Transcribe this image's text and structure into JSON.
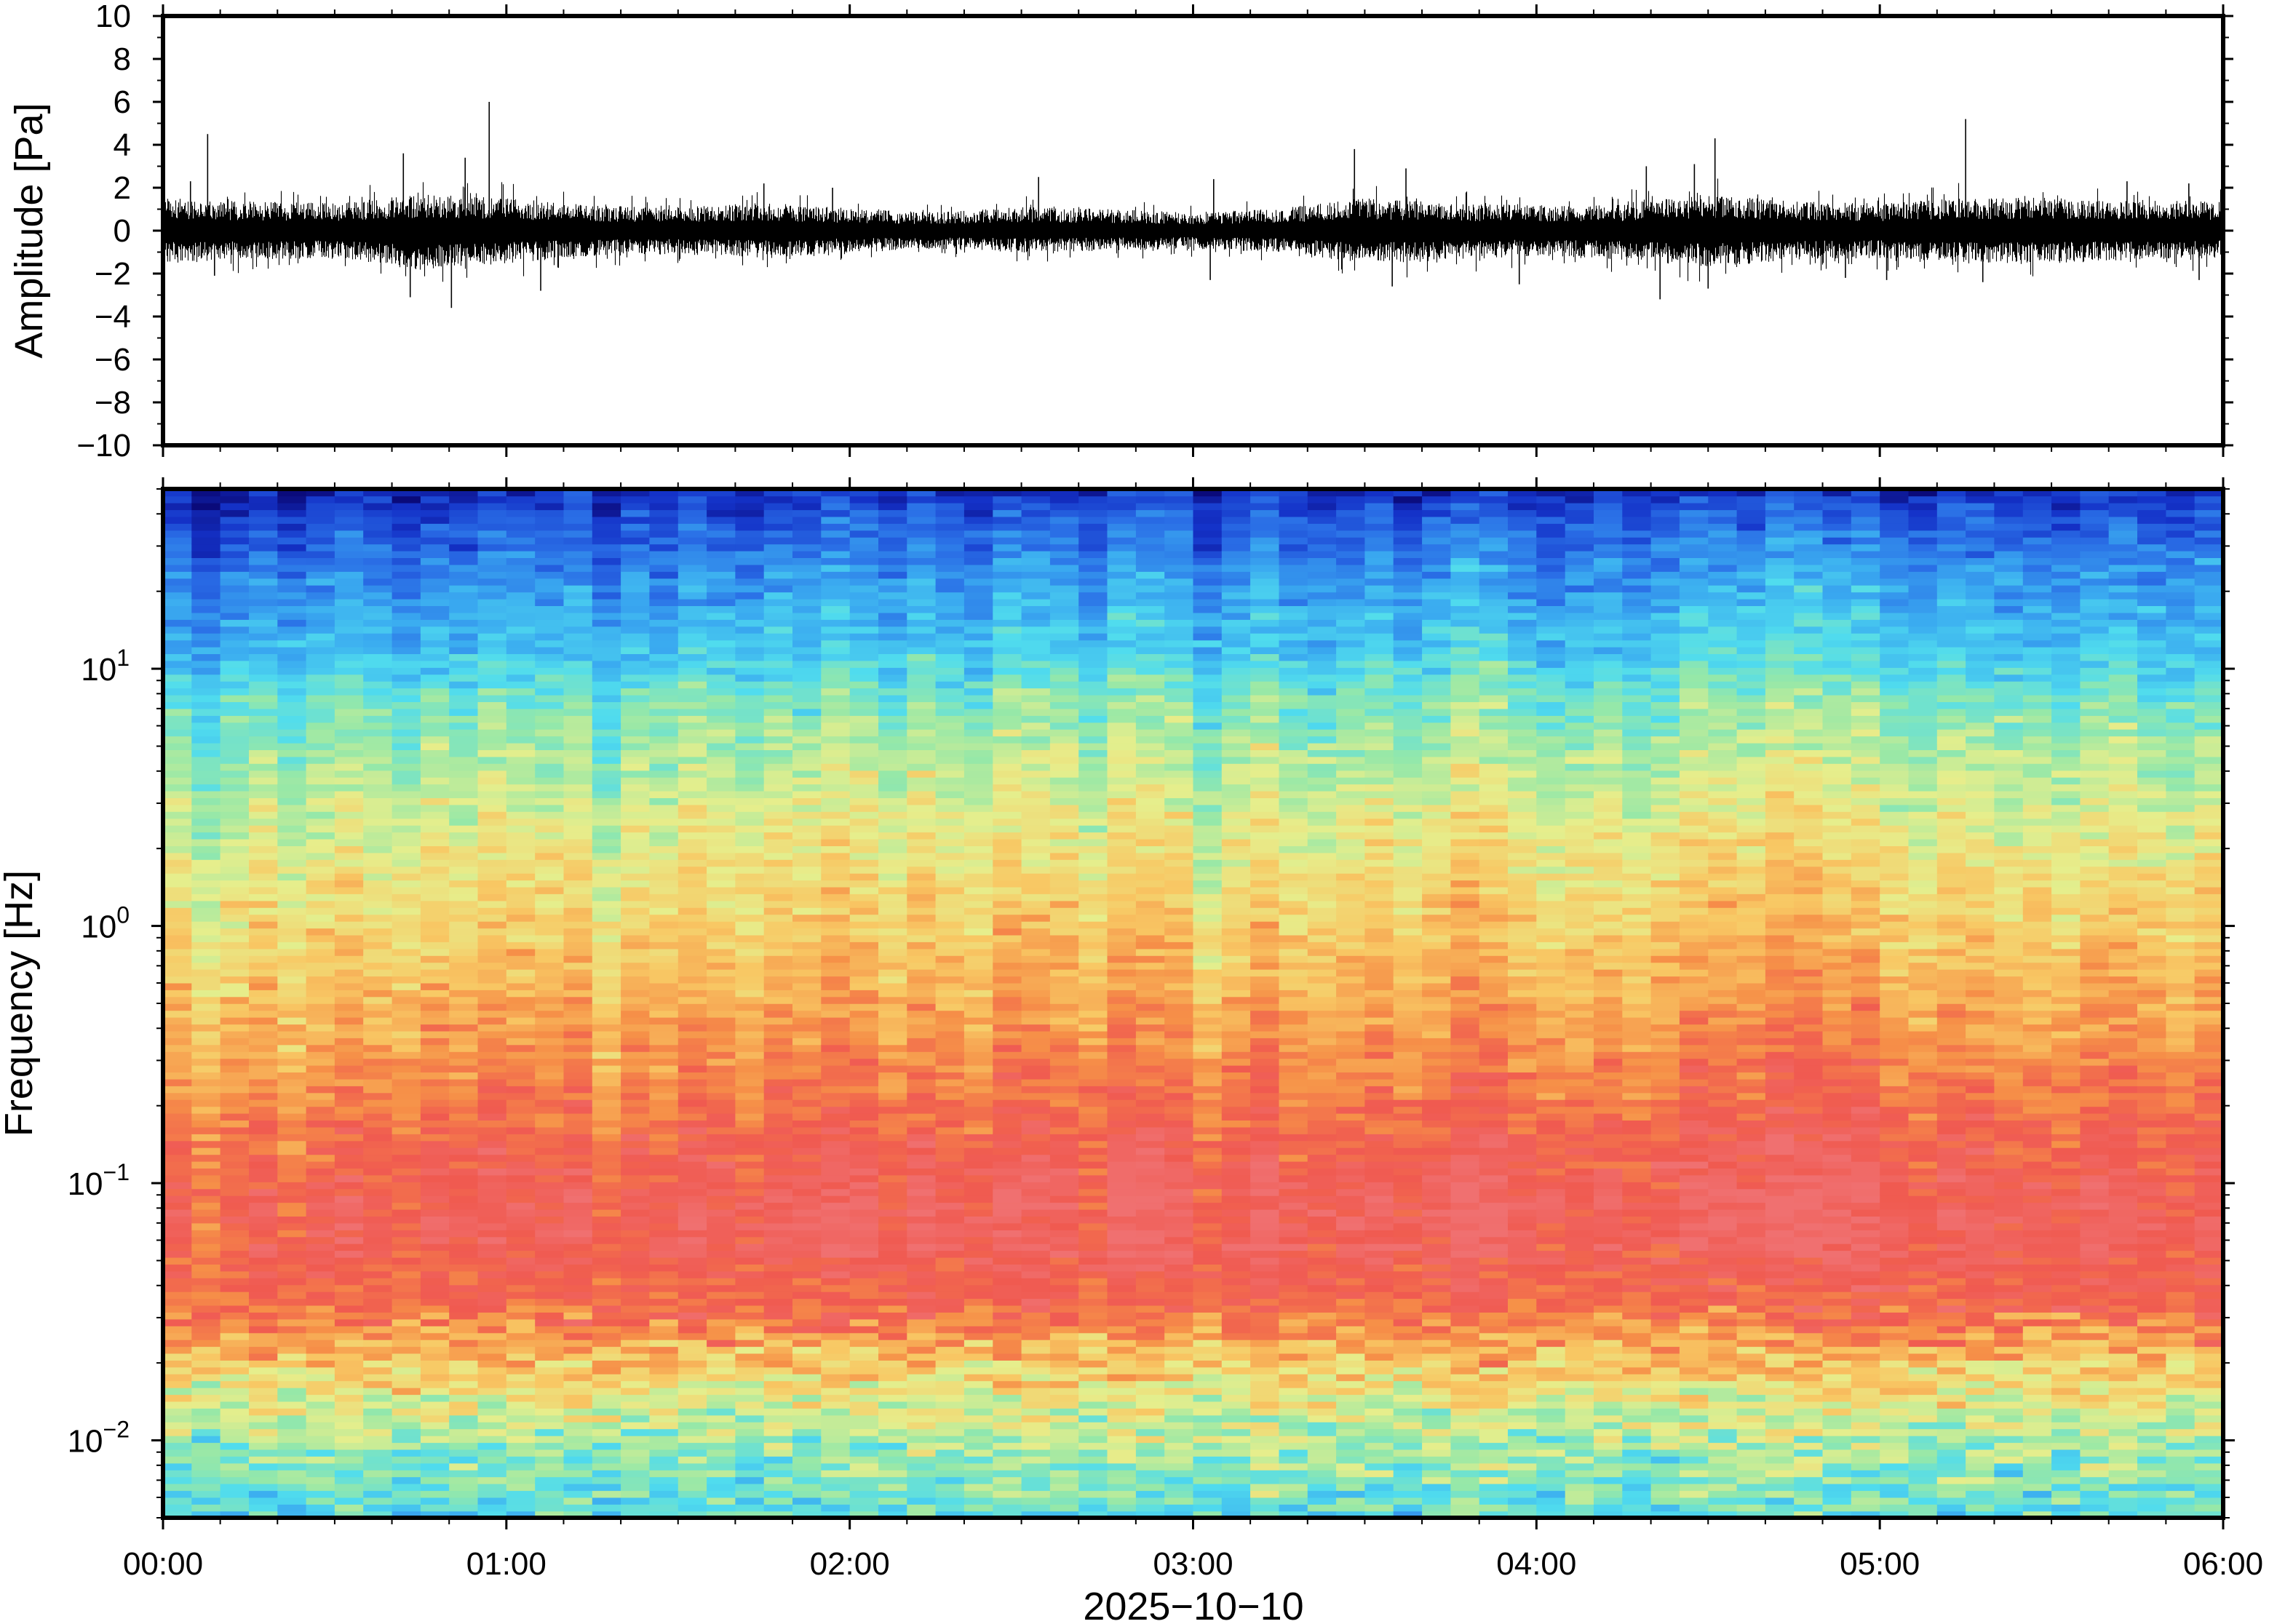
{
  "chart_data": [
    {
      "type": "line",
      "panel": "waveform",
      "title": "",
      "xlabel": "",
      "ylabel": "Amplitude [Pa]",
      "x_range_hours": [
        0,
        6
      ],
      "ylim": [
        -10,
        10
      ],
      "yticks": [
        10,
        8,
        6,
        4,
        2,
        0,
        -2,
        -4,
        -6,
        -8,
        -10
      ],
      "ytick_labels": [
        "10",
        "8",
        "6",
        "4",
        "2",
        "0",
        "−2",
        "−4",
        "−6",
        "−8",
        "−10"
      ],
      "envelope": {
        "t_hours": [
          0.0,
          0.25,
          0.5,
          0.75,
          1.0,
          1.25,
          1.5,
          1.75,
          2.0,
          2.25,
          2.5,
          2.75,
          3.0,
          3.25,
          3.5,
          3.75,
          4.0,
          4.25,
          4.5,
          4.75,
          5.0,
          5.25,
          5.5,
          5.75,
          6.0
        ],
        "typical_max": [
          1.8,
          1.6,
          1.5,
          2.0,
          1.8,
          1.4,
          1.3,
          1.5,
          1.2,
          1.0,
          1.3,
          1.2,
          1.0,
          1.2,
          1.8,
          1.5,
          1.4,
          1.5,
          2.0,
          1.6,
          1.5,
          1.8,
          1.8,
          1.7,
          1.6
        ],
        "typical_min": [
          -1.8,
          -1.6,
          -1.5,
          -2.2,
          -1.8,
          -1.4,
          -1.3,
          -1.5,
          -1.2,
          -1.0,
          -1.2,
          -1.1,
          -1.0,
          -1.2,
          -1.9,
          -1.6,
          -1.4,
          -1.6,
          -2.0,
          -1.6,
          -1.5,
          -1.8,
          -1.8,
          -1.6,
          -1.5
        ]
      },
      "spikes": [
        {
          "t": 0.13,
          "v": 4.5
        },
        {
          "t": 0.08,
          "v": 2.3
        },
        {
          "t": 0.15,
          "v": -2.1
        },
        {
          "t": 0.7,
          "v": 3.6
        },
        {
          "t": 0.72,
          "v": -3.1
        },
        {
          "t": 0.84,
          "v": -3.6
        },
        {
          "t": 0.88,
          "v": 3.4
        },
        {
          "t": 0.95,
          "v": 6.0
        },
        {
          "t": 1.1,
          "v": -2.8
        },
        {
          "t": 1.75,
          "v": 2.2
        },
        {
          "t": 1.95,
          "v": 2.0
        },
        {
          "t": 2.55,
          "v": 2.5
        },
        {
          "t": 3.06,
          "v": 2.4
        },
        {
          "t": 3.05,
          "v": -2.3
        },
        {
          "t": 3.47,
          "v": 3.8
        },
        {
          "t": 3.58,
          "v": -2.6
        },
        {
          "t": 3.62,
          "v": 2.9
        },
        {
          "t": 3.95,
          "v": -2.5
        },
        {
          "t": 4.32,
          "v": 3.0
        },
        {
          "t": 4.36,
          "v": -3.2
        },
        {
          "t": 4.46,
          "v": 3.1
        },
        {
          "t": 4.52,
          "v": 4.3
        },
        {
          "t": 4.5,
          "v": -2.7
        },
        {
          "t": 4.9,
          "v": -2.2
        },
        {
          "t": 5.02,
          "v": -2.3
        },
        {
          "t": 5.25,
          "v": 5.2
        },
        {
          "t": 5.3,
          "v": -2.4
        },
        {
          "t": 5.72,
          "v": 2.3
        },
        {
          "t": 5.9,
          "v": 2.2
        },
        {
          "t": 5.93,
          "v": -2.3
        }
      ]
    },
    {
      "type": "heatmap",
      "panel": "spectrogram",
      "title": "",
      "xlabel": "2025−10−10",
      "ylabel": "Frequency [Hz]",
      "y_scale": "log",
      "ylim_hz": [
        0.005,
        50
      ],
      "yticks_hz": [
        0.01,
        0.1,
        1,
        10
      ],
      "ytick_labels": [
        {
          "base": "10",
          "exp": "−2"
        },
        {
          "base": "10",
          "exp": "−1"
        },
        {
          "base": "10",
          "exp": "0"
        },
        {
          "base": "10",
          "exp": "1"
        }
      ],
      "xtick_labels": [
        "00:00",
        "01:00",
        "02:00",
        "03:00",
        "04:00",
        "05:00",
        "06:00"
      ],
      "x_range_hours": [
        0,
        6
      ],
      "colormap": [
        "#0a0a7a",
        "#1432c8",
        "#2a6ee6",
        "#3aaaf0",
        "#50dcee",
        "#96e8a8",
        "#e6ee8c",
        "#f8c864",
        "#f69048",
        "#f05a50",
        "#f07070"
      ],
      "column_brightness": [
        0.0,
        -0.3,
        -0.1,
        0.1,
        -0.2,
        0.0,
        0.15,
        0.0,
        -0.1,
        0.1,
        0.0,
        0.2,
        0.1,
        0.05,
        0.2,
        -0.2,
        0.1,
        0.0,
        0.25,
        0.1,
        0.0,
        0.15,
        0.1,
        0.3,
        0.2,
        0.0,
        0.25,
        0.1,
        0.0,
        0.3,
        0.25,
        0.2,
        0.0,
        0.35,
        0.3,
        0.25,
        -0.15,
        0.1,
        0.3,
        0.05,
        0.0,
        0.1,
        0.2,
        0.0,
        0.15,
        0.4,
        0.3,
        0.1,
        0.0,
        0.05,
        0.15,
        0.0,
        0.1,
        0.35,
        0.25,
        0.2,
        0.45,
        0.4,
        0.3,
        0.35,
        0.1,
        0.0,
        0.2,
        0.15,
        0.05,
        0.1,
        0.0,
        0.2,
        0.25,
        0.1,
        0.0,
        0.15
      ]
    }
  ]
}
